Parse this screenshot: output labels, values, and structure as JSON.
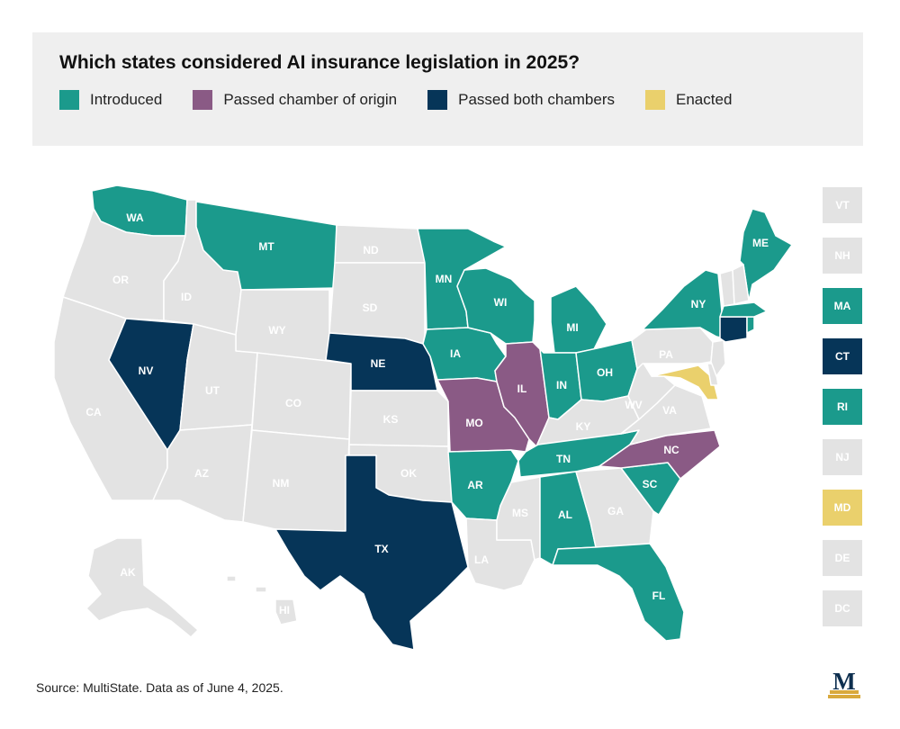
{
  "header": {
    "title": "Which states considered AI insurance legislation in 2025?",
    "legend": [
      {
        "label": "Introduced",
        "color": "#1b9a8c"
      },
      {
        "label": "Passed chamber of origin",
        "color": "#8a5a85"
      },
      {
        "label": "Passed both chambers",
        "color": "#063558"
      },
      {
        "label": "Enacted",
        "color": "#ead06c"
      }
    ]
  },
  "colors": {
    "none": "#e3e3e3",
    "introduced": "#1b9a8c",
    "passed_chamber": "#8a5a85",
    "passed_both": "#063558",
    "enacted": "#ead06c",
    "logo_navy": "#0e2f4f",
    "logo_gold": "#d9a93c"
  },
  "map": {
    "states": [
      {
        "abbr": "WA",
        "status": "introduced"
      },
      {
        "abbr": "OR",
        "status": "none"
      },
      {
        "abbr": "CA",
        "status": "none"
      },
      {
        "abbr": "NV",
        "status": "passed_both"
      },
      {
        "abbr": "ID",
        "status": "none"
      },
      {
        "abbr": "MT",
        "status": "introduced"
      },
      {
        "abbr": "WY",
        "status": "none"
      },
      {
        "abbr": "UT",
        "status": "none"
      },
      {
        "abbr": "AZ",
        "status": "none"
      },
      {
        "abbr": "CO",
        "status": "none"
      },
      {
        "abbr": "NM",
        "status": "none"
      },
      {
        "abbr": "ND",
        "status": "none"
      },
      {
        "abbr": "SD",
        "status": "none"
      },
      {
        "abbr": "NE",
        "status": "passed_both"
      },
      {
        "abbr": "KS",
        "status": "none"
      },
      {
        "abbr": "OK",
        "status": "none"
      },
      {
        "abbr": "TX",
        "status": "passed_both"
      },
      {
        "abbr": "MN",
        "status": "introduced"
      },
      {
        "abbr": "IA",
        "status": "introduced"
      },
      {
        "abbr": "MO",
        "status": "passed_chamber"
      },
      {
        "abbr": "AR",
        "status": "introduced"
      },
      {
        "abbr": "LA",
        "status": "none"
      },
      {
        "abbr": "WI",
        "status": "introduced"
      },
      {
        "abbr": "IL",
        "status": "passed_chamber"
      },
      {
        "abbr": "MI",
        "status": "introduced"
      },
      {
        "abbr": "IN",
        "status": "introduced"
      },
      {
        "abbr": "OH",
        "status": "introduced"
      },
      {
        "abbr": "KY",
        "status": "none"
      },
      {
        "abbr": "TN",
        "status": "introduced"
      },
      {
        "abbr": "MS",
        "status": "none"
      },
      {
        "abbr": "AL",
        "status": "introduced"
      },
      {
        "abbr": "GA",
        "status": "none"
      },
      {
        "abbr": "FL",
        "status": "introduced"
      },
      {
        "abbr": "SC",
        "status": "introduced"
      },
      {
        "abbr": "NC",
        "status": "passed_chamber"
      },
      {
        "abbr": "VA",
        "status": "none"
      },
      {
        "abbr": "WV",
        "status": "none"
      },
      {
        "abbr": "PA",
        "status": "none"
      },
      {
        "abbr": "NY",
        "status": "introduced"
      },
      {
        "abbr": "ME",
        "status": "introduced"
      },
      {
        "abbr": "AK",
        "status": "none"
      },
      {
        "abbr": "HI",
        "status": "none"
      }
    ],
    "small_states": [
      {
        "abbr": "VT",
        "status": "none"
      },
      {
        "abbr": "NH",
        "status": "none"
      },
      {
        "abbr": "MA",
        "status": "introduced"
      },
      {
        "abbr": "CT",
        "status": "passed_both"
      },
      {
        "abbr": "RI",
        "status": "introduced"
      },
      {
        "abbr": "NJ",
        "status": "none"
      },
      {
        "abbr": "MD",
        "status": "enacted"
      },
      {
        "abbr": "DE",
        "status": "none"
      },
      {
        "abbr": "DC",
        "status": "none"
      }
    ]
  },
  "footer": {
    "source": "Source: MultiState. Data as of June 4, 2025.",
    "logo_letter": "M"
  }
}
